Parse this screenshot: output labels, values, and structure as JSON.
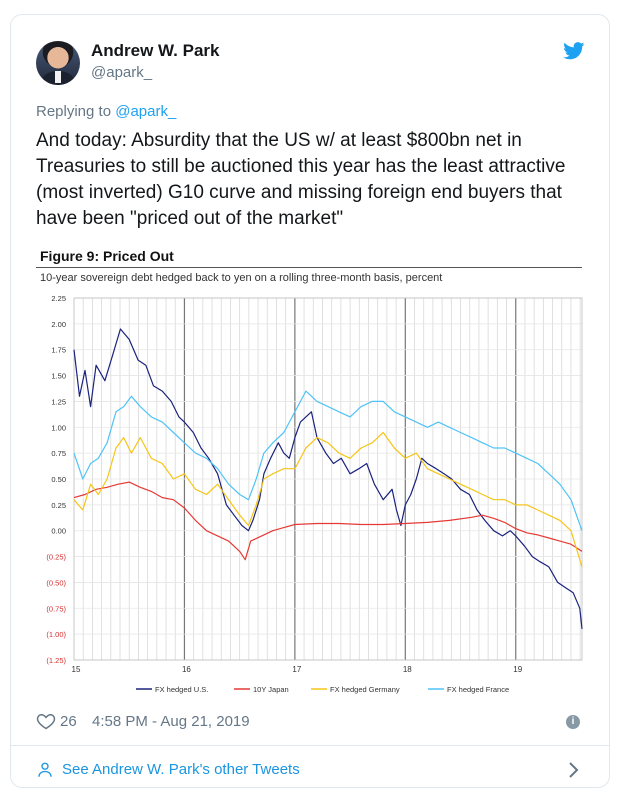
{
  "author": {
    "name": "Andrew W. Park",
    "handle": "@apark_"
  },
  "reply": {
    "prefix": "Replying to ",
    "to": "@apark_"
  },
  "tweet_text": "And today: Absurdity that the US w/ at least $800bn net in Treasuries to still be auctioned this year has the least attractive (most inverted) G10 curve and missing foreign end buyers that have been \"priced out of the market\"",
  "colors": {
    "brand": "#1da1f2",
    "link": "#1b95e0",
    "muted": "#657786"
  },
  "chart_data": {
    "type": "line",
    "title": "Figure 9: Priced Out",
    "subtitle": "10-year sovereign debt hedged back to yen on a rolling three-month basis, percent",
    "x_ticks": [
      "15",
      "16",
      "17",
      "18",
      "19"
    ],
    "y_ticks": [
      "2.25",
      "2.00",
      "1.75",
      "1.50",
      "1.25",
      "1.00",
      "0.75",
      "0.50",
      "0.25",
      "0.00",
      "(0.25)",
      "(0.50)",
      "(0.75)",
      "(1.00)",
      "(1.25)"
    ],
    "ylim": [
      -1.25,
      2.25
    ],
    "xlim": [
      2015.0,
      2019.6
    ],
    "grid": true,
    "legend_position": "bottom",
    "series": [
      {
        "name": "FX hedged U.S.",
        "color": "#1a237e",
        "x": [
          2015.0,
          2015.05,
          2015.1,
          2015.15,
          2015.2,
          2015.28,
          2015.35,
          2015.42,
          2015.5,
          2015.58,
          2015.65,
          2015.72,
          2015.8,
          2015.88,
          2015.95,
          2016.0,
          2016.08,
          2016.15,
          2016.22,
          2016.3,
          2016.38,
          2016.45,
          2016.52,
          2016.58,
          2016.62,
          2016.68,
          2016.72,
          2016.78,
          2016.85,
          2016.9,
          2016.95,
          2017.0,
          2017.05,
          2017.1,
          2017.15,
          2017.2,
          2017.28,
          2017.35,
          2017.42,
          2017.5,
          2017.58,
          2017.65,
          2017.72,
          2017.8,
          2017.88,
          2017.92,
          2017.96,
          2018.0,
          2018.05,
          2018.1,
          2018.15,
          2018.2,
          2018.28,
          2018.35,
          2018.42,
          2018.5,
          2018.58,
          2018.65,
          2018.72,
          2018.8,
          2018.88,
          2018.95,
          2019.0,
          2019.08,
          2019.15,
          2019.22,
          2019.3,
          2019.38,
          2019.45,
          2019.52,
          2019.58,
          2019.6
        ],
        "values": [
          1.75,
          1.3,
          1.55,
          1.2,
          1.6,
          1.45,
          1.7,
          1.95,
          1.85,
          1.65,
          1.6,
          1.4,
          1.35,
          1.25,
          1.1,
          1.05,
          0.95,
          0.8,
          0.7,
          0.55,
          0.25,
          0.15,
          0.05,
          0.0,
          0.1,
          0.3,
          0.55,
          0.7,
          0.85,
          0.75,
          0.7,
          0.9,
          1.05,
          1.1,
          1.15,
          0.9,
          0.75,
          0.65,
          0.7,
          0.55,
          0.6,
          0.65,
          0.45,
          0.3,
          0.4,
          0.2,
          0.05,
          0.25,
          0.35,
          0.5,
          0.7,
          0.65,
          0.6,
          0.55,
          0.5,
          0.4,
          0.35,
          0.2,
          0.1,
          0.0,
          -0.05,
          0.0,
          -0.05,
          -0.15,
          -0.25,
          -0.3,
          -0.35,
          -0.5,
          -0.55,
          -0.6,
          -0.75,
          -0.95
        ]
      },
      {
        "name": "10Y Japan",
        "color": "#e53935",
        "x": [
          2015.0,
          2015.1,
          2015.2,
          2015.3,
          2015.4,
          2015.5,
          2015.6,
          2015.7,
          2015.8,
          2015.9,
          2016.0,
          2016.1,
          2016.2,
          2016.3,
          2016.4,
          2016.5,
          2016.55,
          2016.6,
          2016.7,
          2016.8,
          2016.9,
          2017.0,
          2017.2,
          2017.4,
          2017.6,
          2017.8,
          2018.0,
          2018.2,
          2018.4,
          2018.6,
          2018.7,
          2018.8,
          2018.9,
          2019.0,
          2019.1,
          2019.2,
          2019.3,
          2019.4,
          2019.5,
          2019.6
        ],
        "values": [
          0.32,
          0.35,
          0.4,
          0.42,
          0.45,
          0.47,
          0.42,
          0.38,
          0.32,
          0.3,
          0.22,
          0.1,
          0.0,
          -0.05,
          -0.1,
          -0.2,
          -0.28,
          -0.1,
          -0.05,
          0.0,
          0.03,
          0.06,
          0.07,
          0.07,
          0.06,
          0.06,
          0.07,
          0.08,
          0.1,
          0.13,
          0.15,
          0.12,
          0.08,
          0.02,
          -0.02,
          -0.04,
          -0.07,
          -0.1,
          -0.13,
          -0.2
        ]
      },
      {
        "name": "FX hedged Germany",
        "color": "#f5c518",
        "x": [
          2015.0,
          2015.08,
          2015.15,
          2015.22,
          2015.3,
          2015.38,
          2015.45,
          2015.52,
          2015.6,
          2015.7,
          2015.8,
          2015.9,
          2016.0,
          2016.1,
          2016.2,
          2016.3,
          2016.4,
          2016.5,
          2016.58,
          2016.65,
          2016.72,
          2016.8,
          2016.9,
          2017.0,
          2017.1,
          2017.2,
          2017.3,
          2017.4,
          2017.5,
          2017.6,
          2017.7,
          2017.8,
          2017.9,
          2018.0,
          2018.1,
          2018.2,
          2018.3,
          2018.4,
          2018.5,
          2018.6,
          2018.7,
          2018.8,
          2018.9,
          2019.0,
          2019.1,
          2019.2,
          2019.3,
          2019.4,
          2019.5,
          2019.6
        ],
        "values": [
          0.3,
          0.2,
          0.45,
          0.35,
          0.5,
          0.8,
          0.9,
          0.75,
          0.9,
          0.7,
          0.65,
          0.5,
          0.55,
          0.4,
          0.35,
          0.45,
          0.3,
          0.15,
          0.05,
          0.25,
          0.5,
          0.55,
          0.6,
          0.6,
          0.8,
          0.9,
          0.85,
          0.75,
          0.7,
          0.8,
          0.85,
          0.95,
          0.8,
          0.7,
          0.75,
          0.6,
          0.55,
          0.5,
          0.45,
          0.4,
          0.35,
          0.3,
          0.3,
          0.25,
          0.25,
          0.2,
          0.15,
          0.1,
          0.0,
          -0.35
        ]
      },
      {
        "name": "FX hedged France",
        "color": "#4fc3f7",
        "x": [
          2015.0,
          2015.08,
          2015.15,
          2015.22,
          2015.3,
          2015.38,
          2015.45,
          2015.52,
          2015.6,
          2015.7,
          2015.8,
          2015.9,
          2016.0,
          2016.1,
          2016.2,
          2016.3,
          2016.4,
          2016.5,
          2016.58,
          2016.65,
          2016.72,
          2016.8,
          2016.9,
          2017.0,
          2017.1,
          2017.2,
          2017.3,
          2017.4,
          2017.5,
          2017.6,
          2017.7,
          2017.8,
          2017.9,
          2018.0,
          2018.1,
          2018.2,
          2018.3,
          2018.4,
          2018.5,
          2018.6,
          2018.7,
          2018.8,
          2018.9,
          2019.0,
          2019.1,
          2019.2,
          2019.3,
          2019.4,
          2019.5,
          2019.6
        ],
        "values": [
          0.75,
          0.5,
          0.65,
          0.7,
          0.85,
          1.15,
          1.2,
          1.3,
          1.2,
          1.1,
          1.05,
          0.95,
          0.85,
          0.75,
          0.7,
          0.6,
          0.45,
          0.35,
          0.3,
          0.5,
          0.75,
          0.85,
          0.95,
          1.15,
          1.35,
          1.25,
          1.2,
          1.15,
          1.1,
          1.2,
          1.25,
          1.25,
          1.15,
          1.1,
          1.05,
          1.0,
          1.05,
          1.0,
          0.95,
          0.9,
          0.85,
          0.8,
          0.8,
          0.75,
          0.7,
          0.65,
          0.55,
          0.45,
          0.3,
          0.0
        ]
      }
    ]
  },
  "likes": "26",
  "timestamp": "4:58 PM - Aug 21, 2019",
  "see_more": "See Andrew W. Park's other Tweets"
}
